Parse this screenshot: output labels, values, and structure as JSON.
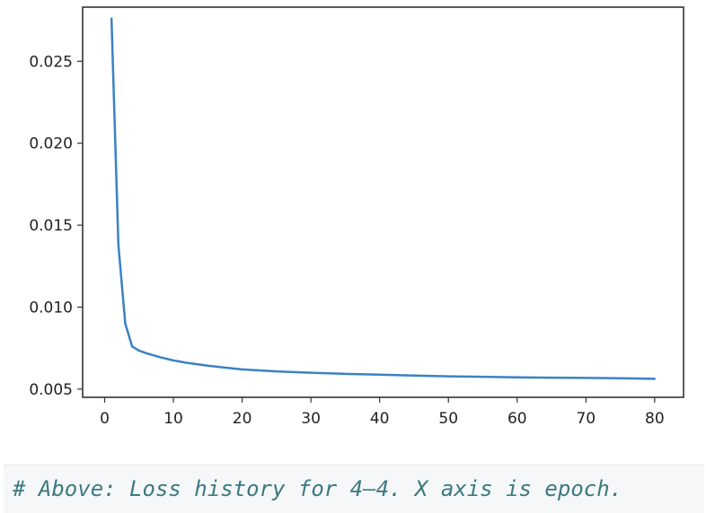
{
  "chart_data": {
    "type": "line",
    "title": "",
    "xlabel": "",
    "ylabel": "",
    "xlim": [
      -3.2,
      84.2
    ],
    "ylim": [
      0.0045,
      0.0283
    ],
    "x_ticks": [
      0,
      10,
      20,
      30,
      40,
      50,
      60,
      70,
      80
    ],
    "y_ticks": [
      0.005,
      0.01,
      0.015,
      0.02,
      0.025
    ],
    "y_tick_labels": [
      "0.005",
      "0.010",
      "0.015",
      "0.020",
      "0.025"
    ],
    "x_tick_labels": [
      "0",
      "10",
      "20",
      "30",
      "40",
      "50",
      "60",
      "70",
      "80"
    ],
    "grid": false,
    "series": [
      {
        "color": "#3b82c4",
        "x": [
          1,
          2,
          3,
          4,
          5,
          6,
          8,
          10,
          12,
          15,
          20,
          25,
          30,
          35,
          40,
          45,
          50,
          55,
          60,
          65,
          70,
          75,
          80
        ],
        "y": [
          0.0276,
          0.0138,
          0.009,
          0.0076,
          0.00735,
          0.0072,
          0.00695,
          0.00675,
          0.0066,
          0.00643,
          0.0062,
          0.00608,
          0.006,
          0.00593,
          0.00588,
          0.00583,
          0.00578,
          0.00575,
          0.00572,
          0.0057,
          0.00568,
          0.00566,
          0.00563
        ]
      }
    ]
  },
  "caption": {
    "text": "# Above: Loss history for 4—4. X axis is epoch."
  }
}
